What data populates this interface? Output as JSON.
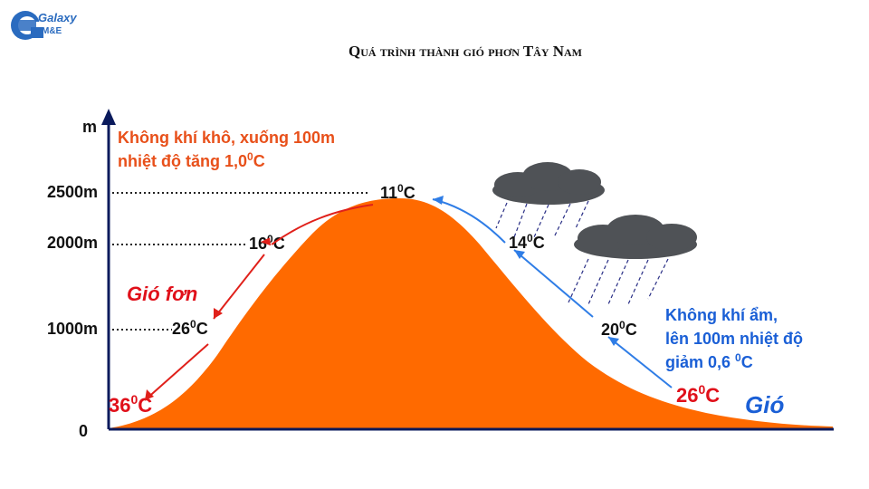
{
  "logo": {
    "line1": "Galaxy",
    "line2": "M&E"
  },
  "title": "Quá trình thành gió phơn Tây Nam",
  "axis": {
    "y_unit": "m",
    "ticks": [
      "2500m",
      "2000m",
      "1000m",
      "0"
    ]
  },
  "leeward": {
    "note_line1": "Không khí khô, xuống 100m",
    "note_line2_base": "nhiệt độ tăng 1,0",
    "note_line2_sup": "0",
    "note_line2_unit": "C",
    "wind_label": "Gió fơn",
    "temps": [
      {
        "value": "11",
        "sup": "0",
        "unit": "C"
      },
      {
        "value": "16",
        "sup": "0",
        "unit": "C"
      },
      {
        "value": "26",
        "sup": "0",
        "unit": "C"
      },
      {
        "value": "36",
        "sup": "0",
        "unit": "C"
      }
    ]
  },
  "windward": {
    "note_line1": "Không khí ẩm,",
    "note_line2": "lên 100m nhiệt độ",
    "note_line3_base": "giảm 0,6 ",
    "note_line3_sup": "0",
    "note_line3_unit": "C",
    "wind_label": "Gió",
    "temps": [
      {
        "value": "14",
        "sup": "0",
        "unit": "C"
      },
      {
        "value": "20",
        "sup": "0",
        "unit": "C"
      },
      {
        "value": "26",
        "sup": "0",
        "unit": "C"
      }
    ]
  },
  "colors": {
    "mountain": "#ff6a00",
    "axis": "#0a1a5c",
    "leeward": "#e8501a",
    "leeward_arrow": "#e0201a",
    "hot_temp": "#e0101a",
    "windward": "#1a5fd6",
    "windward_arrow": "#2f7de6",
    "cloud": "#4f5256",
    "rain": "#2a2f86",
    "text_dark": "#111111"
  },
  "icons": [
    "logo-mark",
    "cloud-icon",
    "cloud-icon",
    "arrow-icon"
  ]
}
